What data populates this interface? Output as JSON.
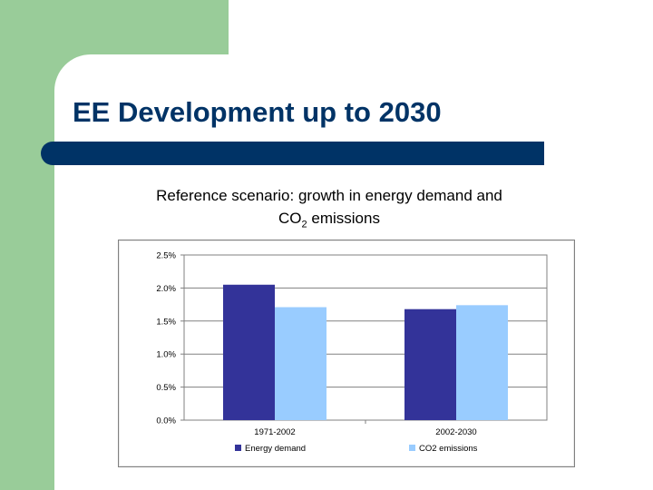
{
  "slide": {
    "title": "EE Development up to 2030",
    "subtitle_line1": "Reference scenario: growth in energy demand and",
    "subtitle_co": "CO",
    "subtitle_sub": "2",
    "subtitle_rest": " emissions",
    "colors": {
      "background_green": "#99cc99",
      "title_color": "#003366",
      "title_bar": "#003366"
    }
  },
  "chart_data": {
    "type": "bar",
    "categories": [
      "1971-2002",
      "2002-2030"
    ],
    "series": [
      {
        "name": "Energy demand",
        "values": [
          2.05,
          1.68
        ],
        "color": "#333399"
      },
      {
        "name": "CO2 emissions",
        "values": [
          1.71,
          1.74
        ],
        "color": "#99ccff"
      }
    ],
    "yticks": [
      "0.0%",
      "0.5%",
      "1.0%",
      "1.5%",
      "2.0%",
      "2.5%"
    ],
    "ylim": [
      0,
      2.5
    ],
    "grid": true,
    "legend_position": "bottom"
  }
}
